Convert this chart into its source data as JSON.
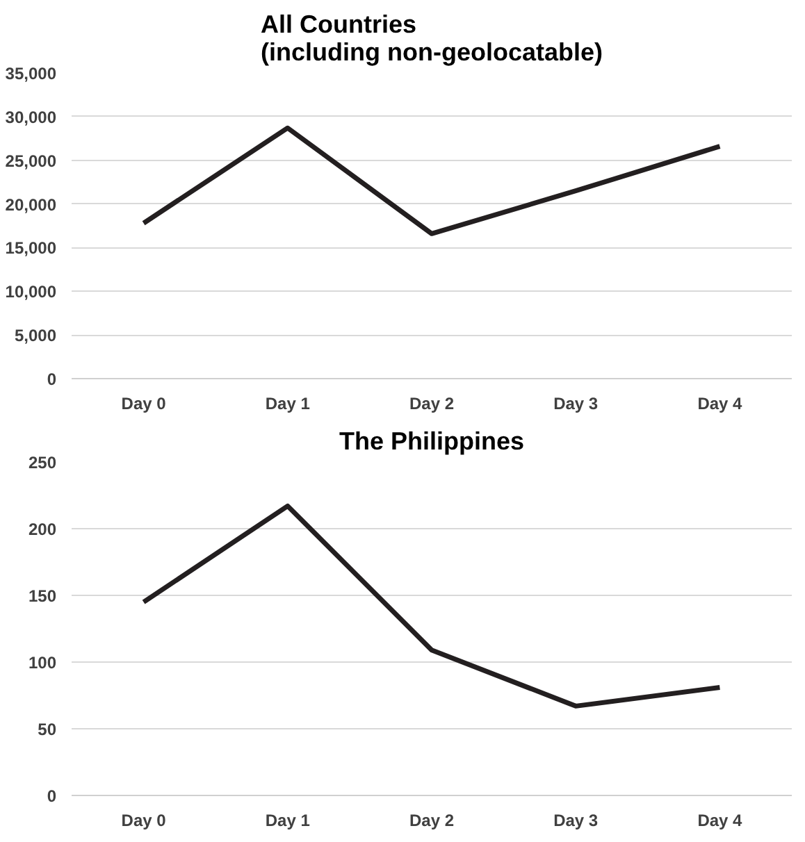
{
  "chart_data": [
    {
      "type": "line",
      "title": "All Countries\n(including non-geolocatable)",
      "categories": [
        "Day 0",
        "Day 1",
        "Day 2",
        "Day 3",
        "Day 4"
      ],
      "series": [
        {
          "color": "#231f20",
          "values": [
            17800,
            28700,
            16600,
            21500,
            26600
          ]
        }
      ],
      "ylim": [
        0,
        35000
      ],
      "yticks": [
        {
          "value": 0,
          "label": "0"
        },
        {
          "value": 5000,
          "label": "5,000"
        },
        {
          "value": 10000,
          "label": "10,000"
        },
        {
          "value": 15000,
          "label": "15,000"
        },
        {
          "value": 20000,
          "label": "20,000"
        },
        {
          "value": 25000,
          "label": "25,000"
        },
        {
          "value": 30000,
          "label": "30,000"
        },
        {
          "value": 35000,
          "label": "35,000"
        }
      ],
      "grid": "y"
    },
    {
      "type": "line",
      "title": "The Philippines",
      "categories": [
        "Day 0",
        "Day 1",
        "Day 2",
        "Day 3",
        "Day 4"
      ],
      "series": [
        {
          "color": "#231f20",
          "values": [
            145,
            217,
            109,
            67,
            81
          ]
        }
      ],
      "ylim": [
        0,
        250
      ],
      "yticks": [
        0,
        50,
        100,
        150,
        200,
        250
      ],
      "grid": "y"
    }
  ]
}
